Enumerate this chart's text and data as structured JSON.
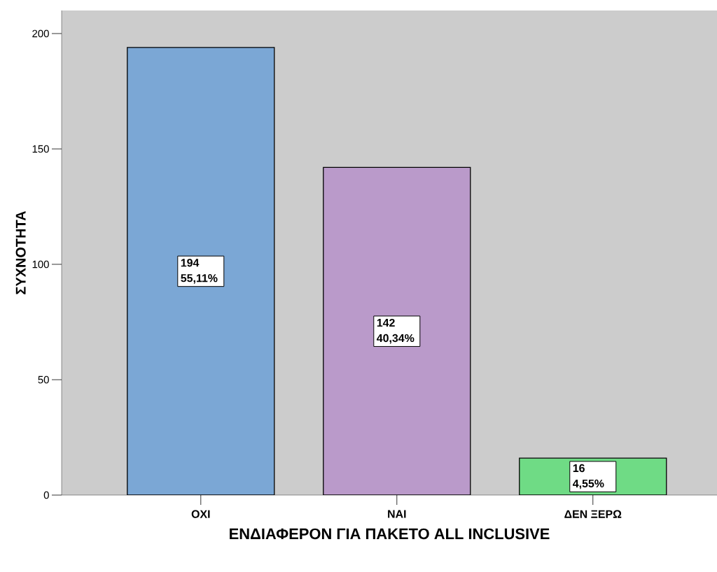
{
  "chart_data": {
    "type": "bar",
    "xlabel": "ΕΝΔΙΑΦΕΡΟΝ ΓΙΑ ΠΑΚΕΤΟ ALL INCLUSIVE",
    "ylabel": "ΣΥΧΝΟΤΗΤΑ",
    "categories": [
      "ΟΧΙ",
      "ΝΑΙ",
      "ΔΕΝ ΞΕΡΩ"
    ],
    "values": [
      194,
      142,
      16
    ],
    "colors": [
      "#7ba7d5",
      "#ba9aca",
      "#6fdb85"
    ],
    "value_labels": [
      "194 55,11%",
      "142 40,34%",
      "16 4,55%"
    ],
    "ylim": [
      0,
      210
    ],
    "yticks": [
      0,
      50,
      100,
      150,
      200
    ]
  }
}
